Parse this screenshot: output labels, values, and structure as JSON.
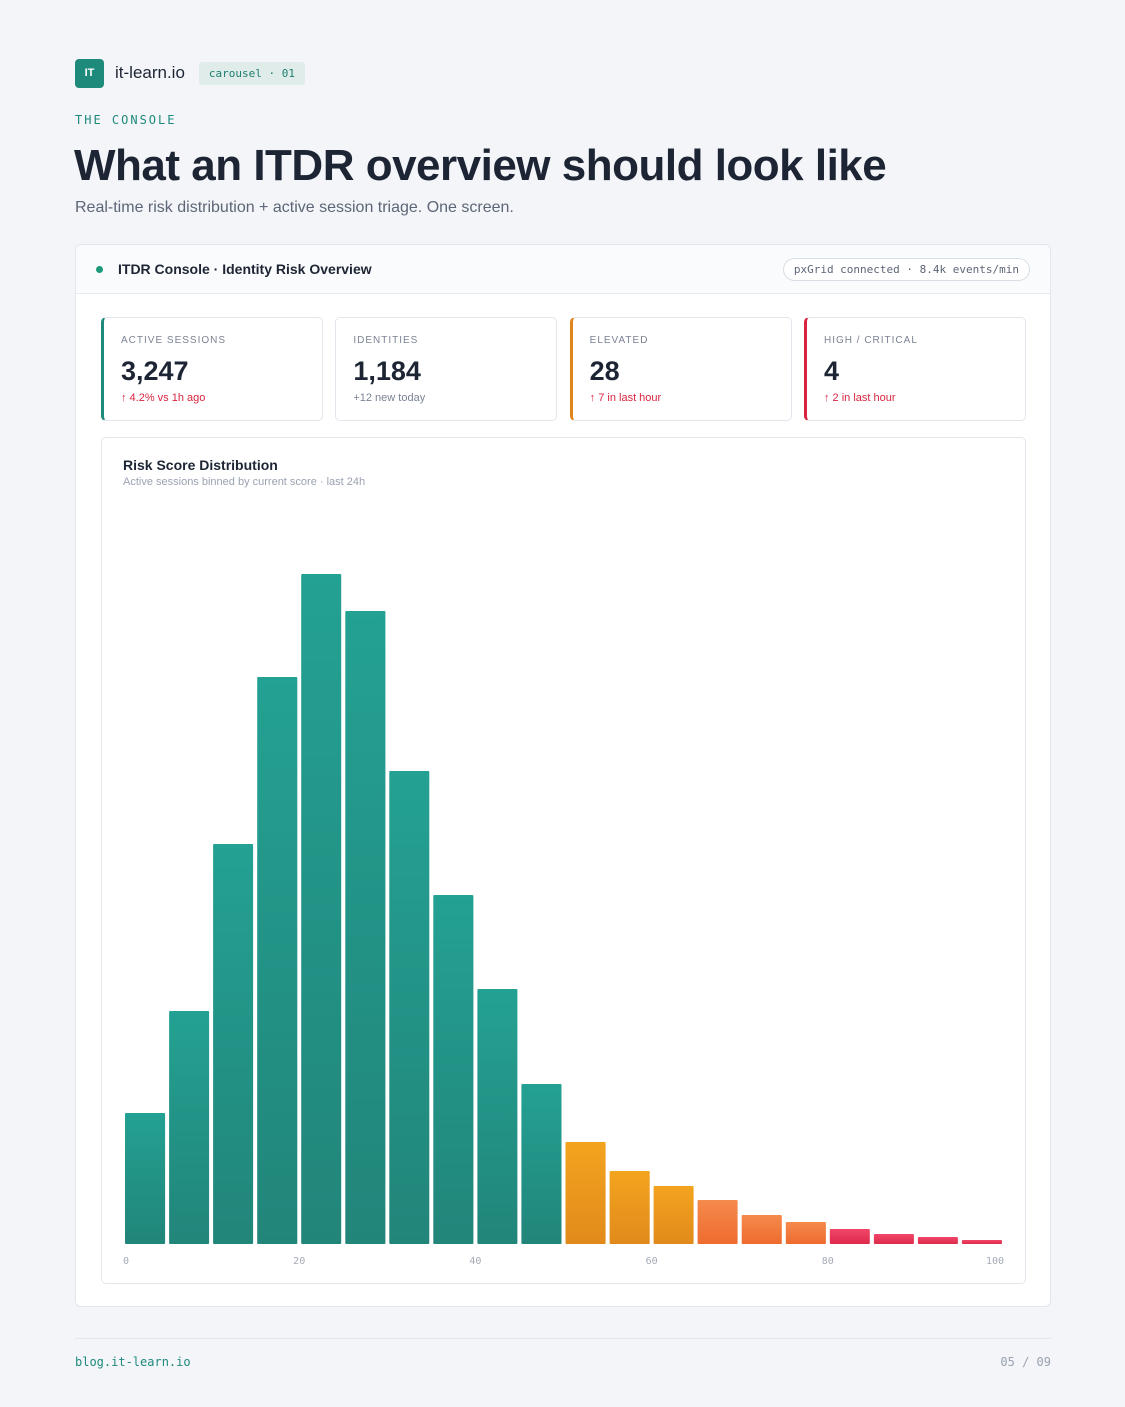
{
  "brand": {
    "logo_text": "IT",
    "name": "it-learn.io",
    "chip": "carousel · 01"
  },
  "eyebrow": "THE CONSOLE",
  "title": "What an ITDR overview should look like",
  "subtitle": "Real-time risk distribution + active session triage. One screen.",
  "panel": {
    "title": "ITDR Console · Identity Risk Overview",
    "connection": "pxGrid connected · 8.4k events/min",
    "status_color": "#1e9a7a"
  },
  "stats": [
    {
      "label": "ACTIVE SESSIONS",
      "value": "3,247",
      "delta": "↑ 4.2% vs 1h ago",
      "accent": "#1e8a7c"
    },
    {
      "label": "IDENTITIES",
      "value": "1,184",
      "delta": "+12 new today",
      "accent": ""
    },
    {
      "label": "ELEVATED",
      "value": "28",
      "delta": "↑ 7 in last hour",
      "accent": "#e0851c"
    },
    {
      "label": "HIGH / CRITICAL",
      "value": "4",
      "delta": "↑ 2 in last hour",
      "accent": "#d8243f"
    }
  ],
  "chart_data": {
    "type": "bar",
    "title": "Risk Score Distribution",
    "subtitle": "Active sessions binned by current score · last 24h",
    "xlabel": "",
    "ylabel": "",
    "x_ticks": [
      "0",
      "20",
      "40",
      "60",
      "80",
      "100"
    ],
    "xlim": [
      0,
      100
    ],
    "bin_width": 5,
    "bins_start": [
      0,
      5,
      10,
      15,
      20,
      25,
      30,
      35,
      40,
      45,
      50,
      55,
      60,
      65,
      70,
      75,
      80,
      85,
      90,
      95
    ],
    "values": [
      131,
      233,
      400,
      567,
      670,
      633,
      473,
      349,
      255,
      160,
      102,
      73,
      58,
      44,
      29,
      22,
      15,
      10,
      7,
      4
    ],
    "colors": {
      "low": [
        "#23a192",
        "#22857a"
      ],
      "elevated": [
        "#f3a41e",
        "#e18a1c"
      ],
      "high": [
        "#f58a4c",
        "#ee6b2f"
      ],
      "critical": [
        "#f0466a",
        "#de2a4a"
      ]
    },
    "grid": false,
    "legend": "none"
  },
  "footer": {
    "left": "blog.it-learn.io",
    "right": "05 / 09"
  }
}
